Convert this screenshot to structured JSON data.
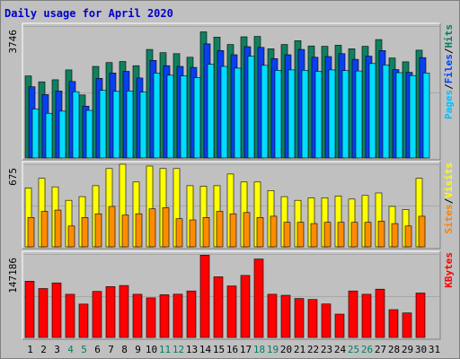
{
  "chart_data": {
    "type": "bar",
    "title": "Daily usage for April 2020",
    "categories": [
      "1",
      "2",
      "3",
      "4",
      "5",
      "6",
      "7",
      "8",
      "9",
      "10",
      "11",
      "12",
      "13",
      "14",
      "15",
      "16",
      "17",
      "18",
      "19",
      "20",
      "21",
      "22",
      "23",
      "24",
      "25",
      "26",
      "27",
      "28",
      "29",
      "30",
      "31"
    ],
    "weekend_days": [
      "4",
      "5",
      "11",
      "12",
      "18",
      "19",
      "25",
      "26"
    ],
    "panels": [
      {
        "id": "hits-files-pages",
        "max_label": "3746",
        "ylim": [
          0,
          3746
        ],
        "legend": [
          "Pages",
          "/",
          "Files",
          "/",
          "Hits"
        ],
        "legend_colors": [
          "#00c0ff",
          "#000000",
          "#0040ff",
          "#000000",
          "#008060"
        ],
        "series": [
          {
            "name": "Hits",
            "color": "#108060",
            "values": [
              2330,
              2160,
              2220,
              2500,
              1790,
              2600,
              2710,
              2740,
              2620,
              3080,
              2990,
              2960,
              2860,
              3580,
              3430,
              3220,
              3440,
              3450,
              3100,
              3220,
              3330,
              3180,
              3170,
              3200,
              3100,
              3170,
              3360,
              2840,
              2730,
              3060,
              0
            ]
          },
          {
            "name": "Files",
            "color": "#0a3ff0",
            "values": [
              2020,
              1800,
              1900,
              2170,
              1470,
              2260,
              2410,
              2460,
              2270,
              2770,
              2620,
              2600,
              2570,
              3240,
              3050,
              2930,
              3160,
              3140,
              2820,
              2930,
              3080,
              2860,
              2880,
              2960,
              2800,
              2890,
              3050,
              2510,
              2430,
              2850,
              0
            ]
          },
          {
            "name": "Pages",
            "color": "#00ddff",
            "values": [
              1390,
              1270,
              1330,
              1880,
              1350,
              1920,
              1890,
              1900,
              1870,
              2410,
              2350,
              2330,
              2280,
              2660,
              2600,
              2550,
              2890,
              2630,
              2490,
              2500,
              2490,
              2460,
              2500,
              2480,
              2470,
              2680,
              2640,
              2420,
              2340,
              2410,
              0
            ]
          }
        ]
      },
      {
        "id": "visits-sites",
        "max_label": "675",
        "ylim": [
          0,
          675
        ],
        "legend": [
          "Sites",
          "/",
          "Visits"
        ],
        "legend_colors": [
          "#ff8000",
          "#000000",
          "#ffff00"
        ],
        "series": [
          {
            "name": "Visits",
            "color": "#ffff00",
            "values": [
              480,
              560,
              490,
              380,
              410,
              500,
              640,
              675,
              530,
              660,
              640,
              640,
              500,
              495,
              500,
              595,
              530,
              530,
              460,
              410,
              380,
              400,
              400,
              415,
              390,
              420,
              440,
              330,
              305,
              560,
              0
            ]
          },
          {
            "name": "Sites",
            "color": "#ff8c00",
            "values": [
              240,
              290,
              300,
              170,
              240,
              270,
              330,
              260,
              270,
              310,
              320,
              230,
              220,
              240,
              290,
              270,
              280,
              240,
              250,
              200,
              200,
              190,
              200,
              200,
              200,
              200,
              210,
              190,
              170,
              250,
              0
            ]
          }
        ]
      },
      {
        "id": "kbytes",
        "max_label": "147186",
        "ylim": [
          0,
          147186
        ],
        "legend": [
          "KBytes"
        ],
        "legend_colors": [
          "#ff0000"
        ],
        "series": [
          {
            "name": "KBytes",
            "color": "#ff0000",
            "values": [
              99300,
              86300,
              96200,
              76100,
              58900,
              81200,
              89700,
              91600,
              76100,
              69800,
              75300,
              76300,
              82000,
              145100,
              107000,
              90900,
              109400,
              138300,
              76100,
              74400,
              68700,
              67000,
              59100,
              41200,
              82000,
              76100,
              85100,
              49100,
              43200,
              78400,
              0
            ]
          }
        ]
      }
    ],
    "grid": true
  }
}
